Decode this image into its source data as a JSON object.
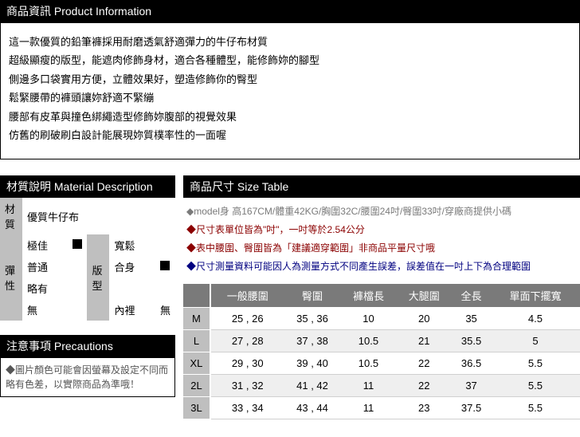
{
  "productInfo": {
    "header": "商品資訊 Product Information",
    "lines": [
      "這一款優質的鉛筆褲採用耐磨透氣舒適彈力的牛仔布材質",
      "超級顯瘦的版型，能遮肉修飾身材，適合各種體型，能修飾妳的腳型",
      "側邊多口袋實用方便，立體效果好，塑造修飾你的臀型",
      "鬆緊腰帶的褲頭讓妳舒適不緊繃",
      "腰部有皮革與撞色綁繩造型修飾妳腹部的視覺效果",
      "仿舊的刷破刷白設計能展現妳質樸率性的一面喔"
    ]
  },
  "material": {
    "header": "材質說明 Material Description",
    "rowMaterial": {
      "label": "材質",
      "value": "優質牛仔布"
    },
    "elasticLabel": "彈性",
    "styleLabel": "版型",
    "elasticLevels": [
      "極佳",
      "普通",
      "略有",
      "無"
    ],
    "styleLevels": [
      "寬鬆",
      "合身"
    ],
    "lining": {
      "label": "內裡",
      "value": "無"
    },
    "elasticSelectedIndex": 0,
    "styleSelectedIndex": 1
  },
  "precautions": {
    "header": "注意事項 Precautions",
    "text": "◆圖片顏色可能會因螢幕及設定不同而略有色差，以實際商品為準哦！"
  },
  "sizeTable": {
    "header": "商品尺寸 Size Table",
    "notes": [
      {
        "cls": "note-gray",
        "text": "◆model身 高167CM/體重42KG/胸圍32C/腰圍24吋/臀圍33吋/穿廠商提供小碼"
      },
      {
        "cls": "note-darkred",
        "text": "◆尺寸表單位皆為\"吋\"，一吋等於2.54公分"
      },
      {
        "cls": "note-darkred",
        "text": "◆表中腰圍、臀圍皆為「建議適穿範圍」非商品平量尺寸哦"
      },
      {
        "cls": "note-blue",
        "text": "◆尺寸測量資料可能因人為測量方式不同產生誤差，誤差值在一吋上下為合理範圍"
      }
    ],
    "columns": [
      "一般腰圍",
      "臀圍",
      "褲檔長",
      "大腿圍",
      "全長",
      "單面下擺寬"
    ],
    "rows": [
      {
        "size": "M",
        "vals": [
          "25 , 26",
          "35 , 36",
          "10",
          "20",
          "35",
          "4.5"
        ]
      },
      {
        "size": "L",
        "vals": [
          "27 , 28",
          "37 , 38",
          "10.5",
          "21",
          "35.5",
          "5"
        ]
      },
      {
        "size": "XL",
        "vals": [
          "29 , 30",
          "39 , 40",
          "10.5",
          "22",
          "36.5",
          "5.5"
        ]
      },
      {
        "size": "2L",
        "vals": [
          "31 , 32",
          "41 , 42",
          "11",
          "22",
          "37",
          "5.5"
        ]
      },
      {
        "size": "3L",
        "vals": [
          "33 , 34",
          "43 , 44",
          "11",
          "23",
          "37.5",
          "5.5"
        ]
      }
    ]
  }
}
